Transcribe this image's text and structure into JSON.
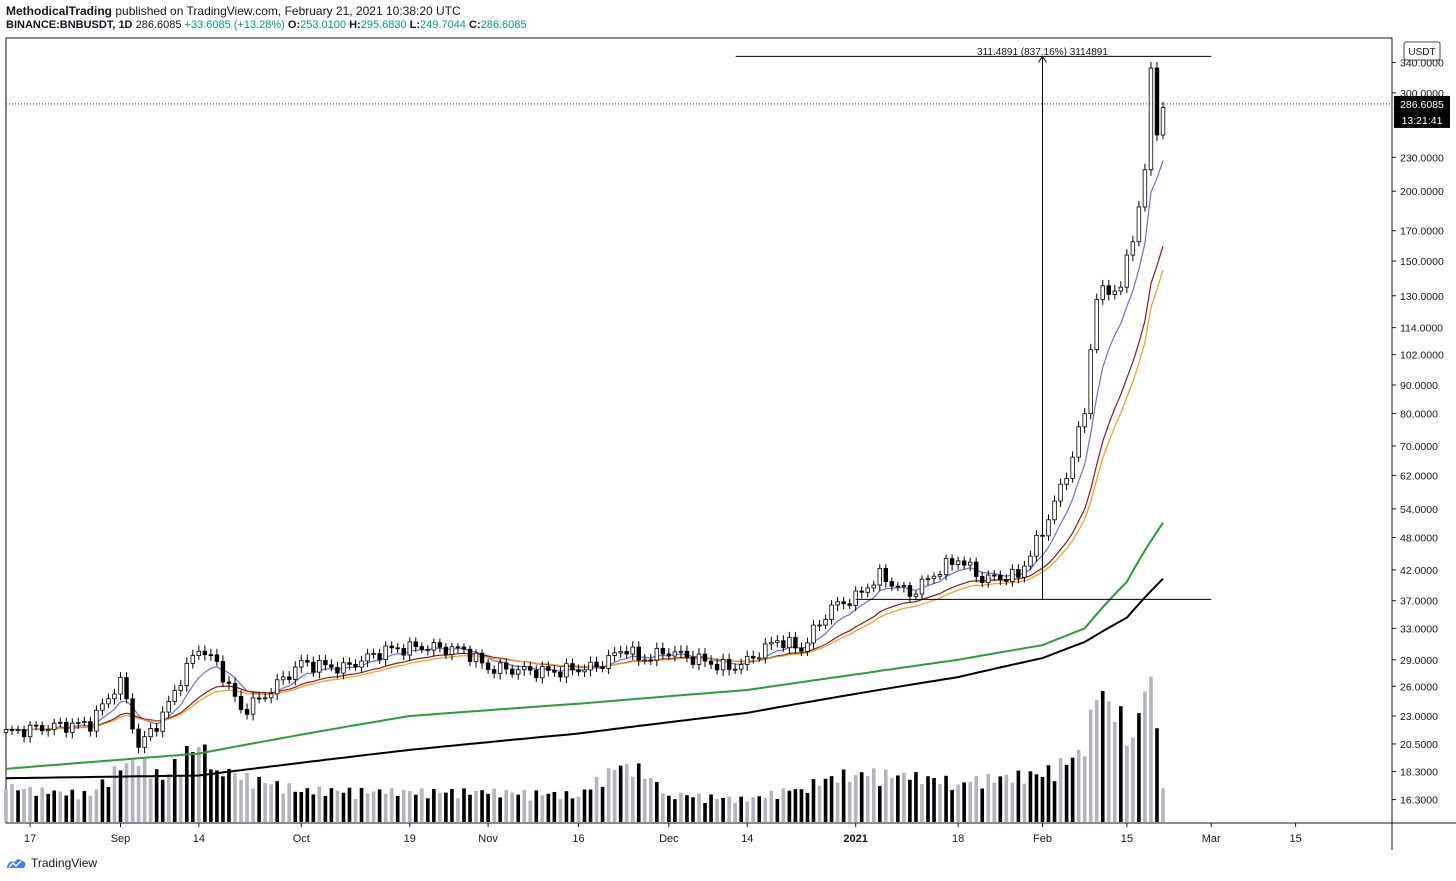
{
  "header": {
    "author": "MethodicalTrading",
    "published_text": " published on TradingView.com, February 21, 2021 10:38:20 UTC",
    "symbol": "BINANCE:BNBUSDT, 1D",
    "last": "286.6085",
    "change": "+33.6085 (+13.28%)",
    "o_label": "O:",
    "o_value": "253.0100",
    "h_label": "H:",
    "h_value": "295.6830",
    "l_label": "L:",
    "l_value": "249.7044",
    "c_label": "C:",
    "c_value": "286.6085"
  },
  "footer": {
    "brand": "TradingView"
  },
  "colors": {
    "ema_blue": "#6b6fd6",
    "ema_darkred": "#8b1a1a",
    "ema_orange": "#f59a23",
    "ma_green": "#2a9d3a",
    "ma_black": "#000000",
    "volume_up": "#b2b5be",
    "volume_down": "#000000"
  },
  "chart_data": {
    "type": "candlestick",
    "log_scale": true,
    "currency_label": "USDT",
    "ylim": [
      14.8,
      373
    ],
    "price_axis_ticks": [
      {
        "value": 16.3,
        "label": "16.3000"
      },
      {
        "value": 18.3,
        "label": "18.3000"
      },
      {
        "value": 20.5,
        "label": "20.5000"
      },
      {
        "value": 23.0,
        "label": "23.0000"
      },
      {
        "value": 26.0,
        "label": "26.0000"
      },
      {
        "value": 29.0,
        "label": "29.0000"
      },
      {
        "value": 33.0,
        "label": "33.0000"
      },
      {
        "value": 37.0,
        "label": "37.0000"
      },
      {
        "value": 42.0,
        "label": "42.0000"
      },
      {
        "value": 48.0,
        "label": "48.0000"
      },
      {
        "value": 54.0,
        "label": "54.0000"
      },
      {
        "value": 62.0,
        "label": "62.0000"
      },
      {
        "value": 70.0,
        "label": "70.0000"
      },
      {
        "value": 80.0,
        "label": "80.0000"
      },
      {
        "value": 90.0,
        "label": "90.0000"
      },
      {
        "value": 102.0,
        "label": "102.0000"
      },
      {
        "value": 114.0,
        "label": "114.0000"
      },
      {
        "value": 130.0,
        "label": "130.0000"
      },
      {
        "value": 150.0,
        "label": "150.0000"
      },
      {
        "value": 170.0,
        "label": "170.0000"
      },
      {
        "value": 200.0,
        "label": "200.0000"
      },
      {
        "value": 230.0,
        "label": "230.0000"
      },
      {
        "value": 300.0,
        "label": "300.0000"
      },
      {
        "value": 340.0,
        "label": "340.0000"
      }
    ],
    "last_price_label": "286.6085",
    "last_price": 286.6085,
    "countdown_label": "13:21:41",
    "x_axis_ticks": [
      {
        "date": "2020-08-17",
        "label": "17"
      },
      {
        "date": "2020-09-01",
        "label": "Sep"
      },
      {
        "date": "2020-09-14",
        "label": "14"
      },
      {
        "date": "2020-10-01",
        "label": "Oct"
      },
      {
        "date": "2020-10-19",
        "label": "19"
      },
      {
        "date": "2020-11-01",
        "label": "Nov"
      },
      {
        "date": "2020-11-16",
        "label": "16"
      },
      {
        "date": "2020-12-01",
        "label": "Dec"
      },
      {
        "date": "2020-12-14",
        "label": "14"
      },
      {
        "date": "2021-01-01",
        "label": "2021"
      },
      {
        "date": "2021-01-18",
        "label": "18"
      },
      {
        "date": "2021-02-01",
        "label": "Feb"
      },
      {
        "date": "2021-02-15",
        "label": "15"
      },
      {
        "date": "2021-03-01",
        "label": "Mar"
      },
      {
        "date": "2021-03-15",
        "label": "15"
      }
    ],
    "x_range": [
      "2020-08-13",
      "2021-03-31"
    ],
    "price_path": [
      [
        "2020-08-13",
        21.5
      ],
      [
        "2020-08-20",
        22.0
      ],
      [
        "2020-08-27",
        22.3
      ],
      [
        "2020-09-01",
        26.5
      ],
      [
        "2020-09-04",
        20.2
      ],
      [
        "2020-09-08",
        23.0
      ],
      [
        "2020-09-14",
        30.5
      ],
      [
        "2020-09-17",
        28.5
      ],
      [
        "2020-09-21",
        23.5
      ],
      [
        "2020-09-25",
        25.0
      ],
      [
        "2020-10-01",
        28.6
      ],
      [
        "2020-10-08",
        28.0
      ],
      [
        "2020-10-15",
        30.2
      ],
      [
        "2020-10-21",
        30.6
      ],
      [
        "2020-10-28",
        30.2
      ],
      [
        "2020-11-01",
        28.0
      ],
      [
        "2020-11-06",
        27.8
      ],
      [
        "2020-11-12",
        27.6
      ],
      [
        "2020-11-19",
        28.2
      ],
      [
        "2020-11-24",
        30.5
      ],
      [
        "2020-11-26",
        29.0
      ],
      [
        "2020-12-01",
        30.0
      ],
      [
        "2020-12-06",
        29.0
      ],
      [
        "2020-12-11",
        28.0
      ],
      [
        "2020-12-14",
        28.8
      ],
      [
        "2020-12-19",
        31.5
      ],
      [
        "2020-12-23",
        30.3
      ],
      [
        "2020-12-28",
        36.0
      ],
      [
        "2021-01-01",
        37.5
      ],
      [
        "2021-01-05",
        41.0
      ],
      [
        "2021-01-10",
        38.0
      ],
      [
        "2021-01-15",
        42.0
      ],
      [
        "2021-01-18",
        44.0
      ],
      [
        "2021-01-22",
        40.5
      ],
      [
        "2021-01-28",
        41.0
      ],
      [
        "2021-02-01",
        49.0
      ],
      [
        "2021-02-05",
        62.0
      ],
      [
        "2021-02-08",
        80.0
      ],
      [
        "2021-02-10",
        130.0
      ],
      [
        "2021-02-14",
        135.0
      ],
      [
        "2021-02-16",
        165.0
      ],
      [
        "2021-02-18",
        215.0
      ],
      [
        "2021-02-19",
        330.0
      ],
      [
        "2021-02-20",
        255.0
      ],
      [
        "2021-02-21",
        286.6085
      ]
    ],
    "moving_averages": [
      {
        "color_key": "ma_black",
        "points": [
          [
            "2020-08-13",
            17.8
          ],
          [
            "2020-09-14",
            18.0
          ],
          [
            "2020-10-19",
            20.0
          ],
          [
            "2020-11-16",
            21.4
          ],
          [
            "2020-12-14",
            23.3
          ],
          [
            "2021-01-01",
            25.2
          ],
          [
            "2021-01-18",
            27.0
          ],
          [
            "2021-02-01",
            29.2
          ],
          [
            "2021-02-08",
            31.2
          ],
          [
            "2021-02-15",
            34.5
          ],
          [
            "2021-02-21",
            40.5
          ]
        ]
      },
      {
        "color_key": "ma_green",
        "points": [
          [
            "2020-08-13",
            18.5
          ],
          [
            "2020-09-14",
            19.7
          ],
          [
            "2020-10-19",
            23.0
          ],
          [
            "2020-11-16",
            24.2
          ],
          [
            "2020-12-14",
            25.6
          ],
          [
            "2021-01-01",
            27.3
          ],
          [
            "2021-01-18",
            29.0
          ],
          [
            "2021-02-01",
            30.8
          ],
          [
            "2021-02-08",
            33.0
          ],
          [
            "2021-02-15",
            40.0
          ],
          [
            "2021-02-21",
            51.0
          ]
        ]
      }
    ],
    "volume": [
      [
        "2020-08-13",
        0.35,
        1
      ],
      [
        "2020-08-20",
        0.3,
        0
      ],
      [
        "2020-08-27",
        0.28,
        1
      ],
      [
        "2020-09-01",
        0.55,
        0
      ],
      [
        "2020-09-04",
        0.6,
        1
      ],
      [
        "2020-09-08",
        0.45,
        0
      ],
      [
        "2020-09-14",
        0.8,
        1
      ],
      [
        "2020-09-17",
        0.55,
        0
      ],
      [
        "2020-09-21",
        0.45,
        1
      ],
      [
        "2020-10-01",
        0.32,
        0
      ],
      [
        "2020-10-15",
        0.3,
        1
      ],
      [
        "2020-11-01",
        0.3,
        0
      ],
      [
        "2020-11-16",
        0.27,
        1
      ],
      [
        "2020-11-24",
        0.62,
        1
      ],
      [
        "2020-12-01",
        0.28,
        0
      ],
      [
        "2020-12-14",
        0.22,
        1
      ],
      [
        "2020-12-23",
        0.35,
        0
      ],
      [
        "2021-01-01",
        0.5,
        1
      ],
      [
        "2021-01-10",
        0.45,
        0
      ],
      [
        "2021-01-18",
        0.4,
        1
      ],
      [
        "2021-02-01",
        0.48,
        0
      ],
      [
        "2021-02-08",
        0.7,
        1
      ],
      [
        "2021-02-10",
        1.3,
        1
      ],
      [
        "2021-02-16",
        0.9,
        1
      ],
      [
        "2021-02-19",
        1.55,
        1
      ],
      [
        "2021-02-20",
        1.0,
        0
      ],
      [
        "2021-02-21",
        0.36,
        1
      ]
    ],
    "measure": {
      "label": "311.4891 (837.16%) 3114891",
      "from_date": "2021-02-01",
      "line_from": "2021-01-01",
      "line_to": "2021-03-01",
      "bottom_price": 37.2,
      "top_price": 348.7
    }
  }
}
